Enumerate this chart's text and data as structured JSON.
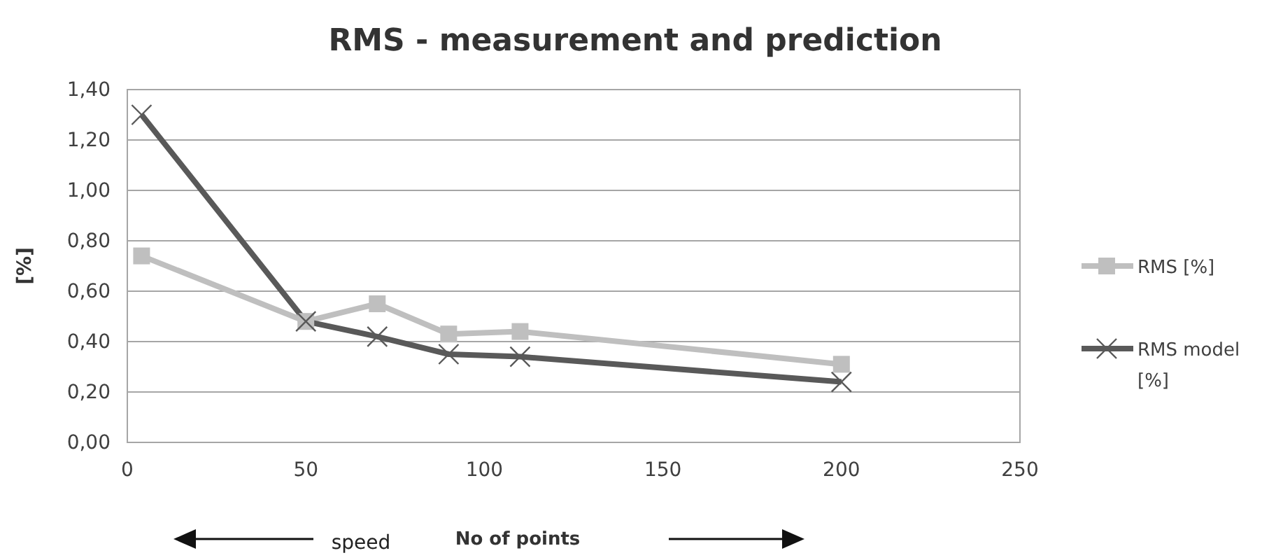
{
  "chart_data": {
    "type": "line",
    "title": "RMS - measurement and prediction",
    "xlabel": "No of points",
    "ylabel": "[%]",
    "annotations": [
      "speed"
    ],
    "xlim": [
      0,
      250
    ],
    "xticks": [
      0,
      50,
      100,
      150,
      200,
      250
    ],
    "ylim": [
      0,
      1.4
    ],
    "yticks": [
      {
        "value": 0,
        "label": "0,00"
      },
      {
        "value": 0.2,
        "label": "0,20"
      },
      {
        "value": 0.4,
        "label": "0,40"
      },
      {
        "value": 0.6,
        "label": "0,60"
      },
      {
        "value": 0.8,
        "label": "0,80"
      },
      {
        "value": 1.0,
        "label": "1,00"
      },
      {
        "value": 1.2,
        "label": "1,20"
      },
      {
        "value": 1.4,
        "label": "1,40"
      }
    ],
    "grid": "y",
    "legend": "right",
    "series": [
      {
        "name": "RMS [%]",
        "color": "#bfbfbf",
        "marker": "square",
        "x": [
          4,
          50,
          70,
          90,
          110,
          200
        ],
        "values": [
          0.74,
          0.48,
          0.55,
          0.43,
          0.44,
          0.31
        ]
      },
      {
        "name": "RMS model [%]",
        "color": "#595959",
        "marker": "cross",
        "x": [
          4,
          50,
          70,
          90,
          110,
          200
        ],
        "values": [
          1.3,
          0.48,
          0.42,
          0.35,
          0.34,
          0.24
        ]
      }
    ]
  }
}
